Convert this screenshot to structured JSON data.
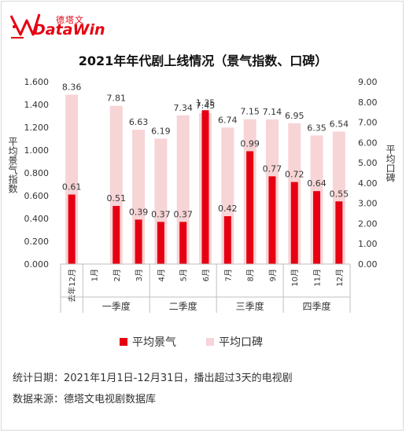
{
  "logo": {
    "cn": "德塔文",
    "en": "DataWin"
  },
  "colors": {
    "heat": "#e60012",
    "rating": "#f7d4d6",
    "logo": "#e60012"
  },
  "chart_data": {
    "type": "bar",
    "title": "2021年年代剧上线情况（景气指数、口碑）",
    "y_left_label": "平均景气指数",
    "y_right_label": "平均口碑",
    "categories": [
      "去年12月",
      "1月",
      "2月",
      "3月",
      "4月",
      "5月",
      "6月",
      "7月",
      "8月",
      "9月",
      "10月",
      "11月",
      "12月"
    ],
    "groups": [
      {
        "label": "一季度",
        "from": 1,
        "to": 3
      },
      {
        "label": "二季度",
        "from": 4,
        "to": 6
      },
      {
        "label": "三季度",
        "from": 7,
        "to": 9
      },
      {
        "label": "四季度",
        "from": 10,
        "to": 12
      }
    ],
    "y_left": {
      "min": 0,
      "max": 1.6,
      "ticks": [
        "0.000",
        "0.200",
        "0.400",
        "0.600",
        "0.800",
        "1.000",
        "1.200",
        "1.400",
        "1.600"
      ]
    },
    "y_right": {
      "min": 0,
      "max": 9,
      "ticks": [
        "0.00",
        "1.00",
        "2.00",
        "3.00",
        "4.00",
        "5.00",
        "6.00",
        "7.00",
        "8.00",
        "9.00"
      ]
    },
    "series": [
      {
        "name": "平均景气",
        "axis": "left",
        "values": [
          0.61,
          null,
          0.51,
          0.39,
          0.37,
          0.37,
          1.35,
          0.42,
          0.99,
          0.77,
          0.72,
          0.64,
          0.55
        ],
        "labels": [
          "0.61",
          "",
          "0.51",
          "0.39",
          "0.37",
          "0.37",
          "1.35",
          "0.42",
          "0.99",
          "0.77",
          "0.72",
          "0.64",
          "0.55"
        ]
      },
      {
        "name": "平均口碑",
        "axis": "right",
        "values": [
          8.36,
          null,
          7.81,
          6.63,
          6.19,
          7.34,
          7.45,
          6.74,
          7.15,
          7.14,
          6.95,
          6.35,
          6.54
        ],
        "labels": [
          "8.36",
          "",
          "7.81",
          "6.63",
          "6.19",
          "7.34",
          "7.45",
          "6.74",
          "7.15",
          "7.14",
          "6.95",
          "6.35",
          "6.54"
        ]
      }
    ],
    "legend": "bottom"
  },
  "footer": {
    "period": "统计日期：2021年1月1日-12月31日，播出超过3天的电视剧",
    "source": "数据来源：德塔文电视剧数据库"
  }
}
